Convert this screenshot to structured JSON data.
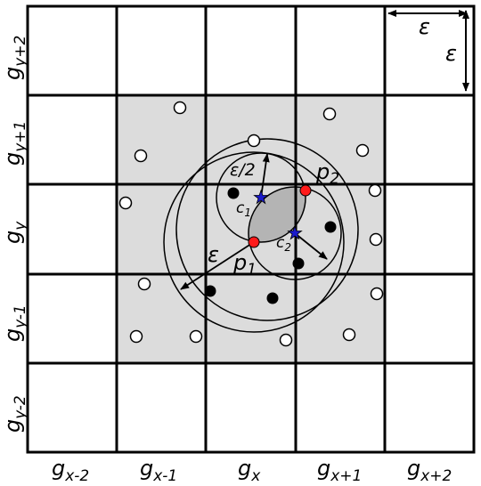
{
  "colors": {
    "grid_line": "#000000",
    "neighborhood_fill": "#dcdcdc",
    "overlap_fill": "#b4b4b4",
    "core_point": "#000000",
    "sample_point_fill": "#ffffff",
    "seed_point": "#ff1a1a",
    "center_star": "#1a1acc"
  },
  "labels": {
    "eps_width": "ε",
    "eps_height": "ε",
    "eps_big_radius": "ε",
    "eps_half_radius": "ε/2",
    "p1_base": "p",
    "p1_sub": "1",
    "p2_base": "p",
    "p2_sub": "2",
    "c1_base": "c",
    "c1_sub": "1",
    "c2_base": "c",
    "c2_sub": "2"
  },
  "columns": [
    {
      "base": "g",
      "sub": "x-2"
    },
    {
      "base": "g",
      "sub": "x-1"
    },
    {
      "base": "g",
      "sub": "x"
    },
    {
      "base": "g",
      "sub": "x+1"
    },
    {
      "base": "g",
      "sub": "x+2"
    }
  ],
  "rows": [
    {
      "base": "g",
      "sub": "y+2"
    },
    {
      "base": "g",
      "sub": "y+1"
    },
    {
      "base": "g",
      "sub": "y"
    },
    {
      "base": "g",
      "sub": "y-1"
    },
    {
      "base": "g",
      "sub": "y-2"
    }
  ],
  "icons": {
    "open_point": "hollow-circle",
    "filled_point": "filled-circle",
    "seed_point": "red-circle",
    "center": "blue-star"
  }
}
